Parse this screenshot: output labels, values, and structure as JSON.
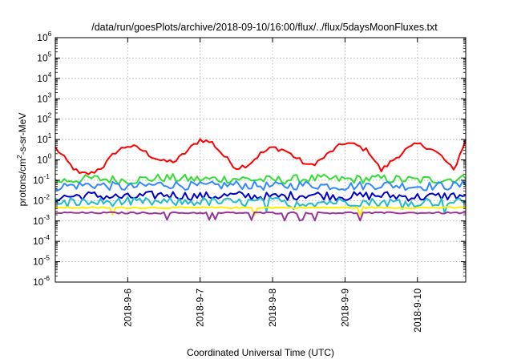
{
  "chart_data": {
    "type": "line",
    "title": "/data/run/goesPlots/archive/2018-09-10/16:00/flux/../flux/5daysMoonFluxes.txt",
    "xlabel": "Coordinated Universal Time (UTC)",
    "ylabel": {
      "prefix": "protons/cm",
      "superscript": "2",
      "suffix": "-s-sr-MeV"
    },
    "yscale": "log",
    "ylim": [
      1e-06,
      1000000.0
    ],
    "y_ticks": [
      {
        "base": "10",
        "exp": "-6",
        "value": 1e-06
      },
      {
        "base": "10",
        "exp": "-5",
        "value": 1e-05
      },
      {
        "base": "10",
        "exp": "-4",
        "value": 0.0001
      },
      {
        "base": "10",
        "exp": "-3",
        "value": 0.001
      },
      {
        "base": "10",
        "exp": "-2",
        "value": 0.01
      },
      {
        "base": "10",
        "exp": "-1",
        "value": 0.1
      },
      {
        "base": "10",
        "exp": "0",
        "value": 1
      },
      {
        "base": "10",
        "exp": "1",
        "value": 10
      },
      {
        "base": "10",
        "exp": "2",
        "value": 100
      },
      {
        "base": "10",
        "exp": "3",
        "value": 1000
      },
      {
        "base": "10",
        "exp": "4",
        "value": 10000
      },
      {
        "base": "10",
        "exp": "5",
        "value": 100000
      },
      {
        "base": "10",
        "exp": "6",
        "value": 1000000
      }
    ],
    "xlim": [
      "2018-09-05 00:00",
      "2018-09-10 16:00"
    ],
    "x_ticks": [
      {
        "label": "2018-9-6",
        "date": "2018-09-06"
      },
      {
        "label": "2018-9-7",
        "date": "2018-09-07"
      },
      {
        "label": "2018-9-8",
        "date": "2018-09-08"
      },
      {
        "label": "2018-9-9",
        "date": "2018-09-09"
      },
      {
        "label": "2018-9-10",
        "date": "2018-09-10"
      }
    ],
    "grid": true,
    "legend": "none",
    "series": [
      {
        "color": "#ff0000",
        "x": [
          "2018-09-05 00:00",
          "2018-09-05 04:00",
          "2018-09-05 08:00",
          "2018-09-05 12:00",
          "2018-09-05 16:00",
          "2018-09-05 20:00",
          "2018-09-06 00:00",
          "2018-09-06 04:00",
          "2018-09-06 08:00",
          "2018-09-06 12:00",
          "2018-09-06 16:00",
          "2018-09-06 20:00",
          "2018-09-07 00:00",
          "2018-09-07 04:00",
          "2018-09-07 08:00",
          "2018-09-07 12:00",
          "2018-09-07 16:00",
          "2018-09-07 20:00",
          "2018-09-08 00:00",
          "2018-09-08 04:00",
          "2018-09-08 08:00",
          "2018-09-08 12:00",
          "2018-09-08 16:00",
          "2018-09-08 20:00",
          "2018-09-09 00:00",
          "2018-09-09 04:00",
          "2018-09-09 08:00",
          "2018-09-09 12:00",
          "2018-09-09 16:00",
          "2018-09-09 20:00",
          "2018-09-10 00:00",
          "2018-09-10 04:00",
          "2018-09-10 08:00",
          "2018-09-10 12:00",
          "2018-09-10 16:00"
        ],
        "y": [
          4,
          0.8,
          0.2,
          0.22,
          0.5,
          2.5,
          5,
          3.5,
          1.5,
          0.8,
          0.9,
          3,
          10,
          7,
          1.5,
          0.4,
          0.6,
          2,
          4,
          3,
          1.2,
          0.5,
          1,
          3,
          7,
          5,
          2.5,
          0.3,
          1,
          3,
          6,
          4,
          1.5,
          0.3,
          10
        ]
      },
      {
        "color": "#33dd33",
        "x": [
          "2018-09-05 00:00",
          "2018-09-05 12:00",
          "2018-09-06 00:00",
          "2018-09-06 12:00",
          "2018-09-07 00:00",
          "2018-09-07 12:00",
          "2018-09-08 00:00",
          "2018-09-08 12:00",
          "2018-09-09 00:00",
          "2018-09-09 12:00",
          "2018-09-10 00:00",
          "2018-09-10 16:00"
        ],
        "y": [
          0.09,
          0.12,
          0.1,
          0.13,
          0.11,
          0.12,
          0.1,
          0.12,
          0.11,
          0.12,
          0.1,
          0.12
        ]
      },
      {
        "color": "#3388ff",
        "x": [
          "2018-09-05 00:00",
          "2018-09-05 12:00",
          "2018-09-06 00:00",
          "2018-09-06 12:00",
          "2018-09-07 00:00",
          "2018-09-07 12:00",
          "2018-09-08 00:00",
          "2018-09-08 12:00",
          "2018-09-09 00:00",
          "2018-09-09 12:00",
          "2018-09-10 00:00",
          "2018-09-10 16:00"
        ],
        "y": [
          0.05,
          0.06,
          0.045,
          0.065,
          0.05,
          0.06,
          0.05,
          0.06,
          0.05,
          0.06,
          0.05,
          0.055
        ]
      },
      {
        "color": "#0000cc",
        "x": [
          "2018-09-05 00:00",
          "2018-09-05 12:00",
          "2018-09-06 00:00",
          "2018-09-06 12:00",
          "2018-09-07 00:00",
          "2018-09-07 12:00",
          "2018-09-08 00:00",
          "2018-09-08 12:00",
          "2018-09-09 00:00",
          "2018-09-09 12:00",
          "2018-09-10 00:00",
          "2018-09-10 16:00"
        ],
        "y": [
          0.015,
          0.018,
          0.014,
          0.02,
          0.016,
          0.018,
          0.015,
          0.02,
          0.016,
          0.018,
          0.015,
          0.018
        ]
      },
      {
        "color": "#22bbcc",
        "x": [
          "2018-09-05 00:00",
          "2018-09-05 12:00",
          "2018-09-06 00:00",
          "2018-09-06 12:00",
          "2018-09-07 00:00",
          "2018-09-07 12:00",
          "2018-09-08 00:00",
          "2018-09-08 12:00",
          "2018-09-09 00:00",
          "2018-09-09 12:00",
          "2018-09-10 00:00",
          "2018-09-10 16:00"
        ],
        "y": [
          0.009,
          0.008,
          0.009,
          0.008,
          0.009,
          0.008,
          0.009,
          0.008,
          0.009,
          0.008,
          0.009,
          0.008
        ]
      },
      {
        "color": "#ffee00",
        "x": [
          "2018-09-05 00:00",
          "2018-09-05 12:00",
          "2018-09-06 00:00",
          "2018-09-06 12:00",
          "2018-09-07 00:00",
          "2018-09-07 12:00",
          "2018-09-08 00:00",
          "2018-09-08 12:00",
          "2018-09-09 00:00",
          "2018-09-09 12:00",
          "2018-09-10 00:00",
          "2018-09-10 16:00"
        ],
        "y": [
          0.0045,
          0.0045,
          0.0045,
          0.0045,
          0.0045,
          0.0045,
          0.0045,
          0.0045,
          0.0045,
          0.0045,
          0.0045,
          0.0045
        ]
      },
      {
        "color": "#993399",
        "x": [
          "2018-09-05 00:00",
          "2018-09-05 12:00",
          "2018-09-06 00:00",
          "2018-09-06 12:00",
          "2018-09-07 00:00",
          "2018-09-07 12:00",
          "2018-09-08 00:00",
          "2018-09-08 12:00",
          "2018-09-09 00:00",
          "2018-09-09 12:00",
          "2018-09-10 00:00",
          "2018-09-10 16:00"
        ],
        "y": [
          0.0025,
          0.0025,
          0.0025,
          0.0025,
          0.0025,
          0.0025,
          0.0025,
          0.0025,
          0.0025,
          0.0025,
          0.0025,
          0.0025
        ]
      }
    ]
  }
}
